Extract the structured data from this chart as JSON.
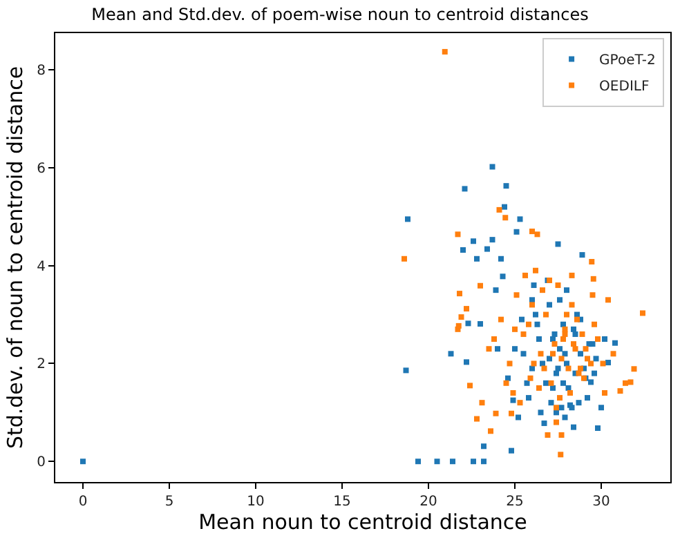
{
  "chart_data": {
    "type": "scatter",
    "title": "Mean and Std.dev. of poem-wise noun to centroid distances",
    "xlabel": "Mean noun to centroid distance",
    "ylabel": "Std.dev. of noun to centroid distance",
    "xlim": [
      -1.6,
      34.0
    ],
    "ylim": [
      -0.42,
      8.75
    ],
    "xticks": [
      0,
      5,
      10,
      15,
      20,
      25,
      30
    ],
    "yticks": [
      0,
      2,
      4,
      6,
      8
    ],
    "legend": "top right",
    "marker": "square",
    "series": [
      {
        "name": "GPoeT-2",
        "color": "#1f77b4",
        "x": [
          0,
          18.8,
          18.7,
          19.4,
          20.5,
          21.4,
          22.6,
          23.2,
          23.2,
          24.8,
          23.7,
          22.1,
          24.5,
          24.4,
          25.3,
          21.3,
          22.2,
          22.0,
          22.6,
          23.7,
          25.1,
          22.8,
          23.4,
          24.2,
          27.5,
          28.9,
          29.8,
          28.4,
          26.7,
          22.3,
          23.0,
          23.9,
          24.3,
          30.8,
          30.4,
          30.0,
          29.4,
          25.5,
          26.0,
          26.4,
          26.8,
          27.0,
          27.2,
          27.4,
          27.6,
          27.8,
          28.0,
          28.2,
          28.5,
          28.8,
          29.1,
          29.5,
          25.8,
          26.2,
          26.6,
          27.1,
          27.3,
          27.5,
          27.7,
          27.9,
          28.1,
          28.4,
          28.7,
          29.0,
          29.3,
          24.6,
          25.0,
          25.4,
          26.0,
          26.5,
          27.0,
          27.4,
          27.8,
          28.3,
          28.6,
          29.2,
          29.7,
          25.2,
          26.1,
          26.9,
          27.6,
          28.0,
          28.8,
          24.0,
          24.9,
          25.7,
          26.3,
          27.2,
          27.9,
          28.5,
          29.6,
          30.2
        ],
        "values": [
          0,
          4.95,
          1.86,
          0,
          0,
          0,
          0,
          0,
          0.31,
          0.22,
          6.02,
          5.57,
          5.63,
          5.2,
          4.95,
          2.2,
          2.03,
          4.32,
          4.5,
          4.53,
          4.69,
          4.14,
          4.34,
          4.14,
          4.44,
          4.22,
          0.68,
          0.7,
          0.78,
          2.82,
          2.81,
          3.5,
          3.78,
          2.42,
          2.02,
          1.1,
          1.62,
          2.2,
          1.9,
          2.5,
          1.6,
          2.1,
          1.5,
          1.8,
          2.3,
          1.6,
          2.0,
          1.15,
          1.8,
          2.2,
          1.7,
          2.4,
          1.3,
          3.0,
          2.0,
          1.2,
          2.6,
          1.9,
          1.1,
          2.2,
          1.5,
          2.7,
          1.2,
          1.9,
          2.4,
          1.7,
          2.3,
          2.9,
          3.3,
          1.0,
          3.2,
          1.0,
          2.8,
          1.1,
          3.0,
          1.3,
          2.1,
          0.9,
          3.6,
          3.7,
          3.3,
          3.5,
          2.9,
          2.3,
          1.25,
          1.6,
          2.8,
          2.5,
          0.9,
          2.6,
          1.8,
          2.5
        ]
      },
      {
        "name": "OEDILF",
        "color": "#ff7f0e",
        "x": [
          20.95,
          18.6,
          21.7,
          21.8,
          21.7,
          21.75,
          21.9,
          22.2,
          23.0,
          22.8,
          22.4,
          23.1,
          23.6,
          23.9,
          24.1,
          24.45,
          27.65,
          32.4,
          31.9,
          31.7,
          31.4,
          31.1,
          26.0,
          26.3,
          27.7,
          26.9,
          24.8,
          29.45,
          29.55,
          23.5,
          24.2,
          24.7,
          25.1,
          25.5,
          25.9,
          26.2,
          26.5,
          26.8,
          27.1,
          27.3,
          27.5,
          27.7,
          27.9,
          28.1,
          28.3,
          28.5,
          28.7,
          28.9,
          29.2,
          29.5,
          29.8,
          30.1,
          30.4,
          30.7,
          25.3,
          25.8,
          26.4,
          27.0,
          27.4,
          27.8,
          28.2,
          28.6,
          29.0,
          29.4,
          23.8,
          24.5,
          25.0,
          26.0,
          26.7,
          27.2,
          27.6,
          28.0,
          28.4,
          28.8,
          29.6,
          30.2,
          25.6,
          26.6,
          27.4,
          28.3,
          29.1,
          24.9,
          26.1,
          27.9
        ],
        "values": [
          8.37,
          4.14,
          4.64,
          3.43,
          2.7,
          2.77,
          2.95,
          3.12,
          3.59,
          0.87,
          1.55,
          1.2,
          0.62,
          0.98,
          5.14,
          4.98,
          0.14,
          3.03,
          1.89,
          1.62,
          1.6,
          1.44,
          4.7,
          4.64,
          0.54,
          0.54,
          0.98,
          4.08,
          3.73,
          2.3,
          2.9,
          2.0,
          3.4,
          2.6,
          1.7,
          3.9,
          2.2,
          3.0,
          1.6,
          2.4,
          3.6,
          2.1,
          2.7,
          1.9,
          3.2,
          2.3,
          1.8,
          2.6,
          2.1,
          3.4,
          2.5,
          2.0,
          3.3,
          2.2,
          1.2,
          2.8,
          1.5,
          3.7,
          1.1,
          2.5,
          1.4,
          2.9,
          1.7,
          2.0,
          2.5,
          1.6,
          2.7,
          3.2,
          1.9,
          2.2,
          1.3,
          3.0,
          2.4,
          1.9,
          2.8,
          1.4,
          3.8,
          3.5,
          0.8,
          3.8,
          2.3,
          1.4,
          2.0,
          2.6
        ]
      }
    ]
  }
}
